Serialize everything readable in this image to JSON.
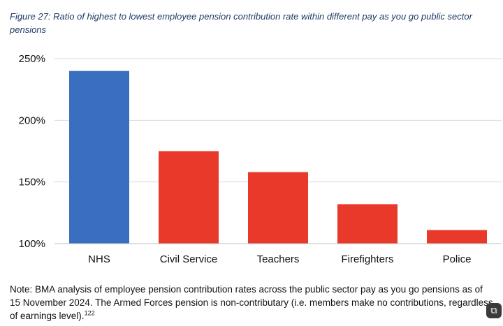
{
  "caption": "Figure 27: Ratio of highest to lowest employee pension contribution rate within different pay as you go public sector pensions",
  "chart_data": {
    "type": "bar",
    "title": "",
    "xlabel": "",
    "ylabel": "",
    "categories": [
      "NHS",
      "Civil Service",
      "Teachers",
      "Firefighters",
      "Police"
    ],
    "values": [
      240,
      175,
      158,
      132,
      111
    ],
    "bar_colors": [
      "#3a6fc0",
      "#e8392a",
      "#e8392a",
      "#e8392a",
      "#e8392a"
    ],
    "ylim": [
      100,
      250
    ],
    "yticks": [
      100,
      150,
      200,
      250
    ],
    "ytick_labels": [
      "100%",
      "150%",
      "200%",
      "250%"
    ],
    "grid": true,
    "legend": "none"
  },
  "note": {
    "text": "Note: BMA analysis of employee pension contribution rates across the public sector pay as you go pensions as of 15 November 2024. The Armed Forces pension is non-contributary (i.e. members make no contributions, regardless of earnings level).",
    "ref": "122"
  },
  "corner_button": {
    "icon": "image-search-icon",
    "glyph": "⧉"
  }
}
